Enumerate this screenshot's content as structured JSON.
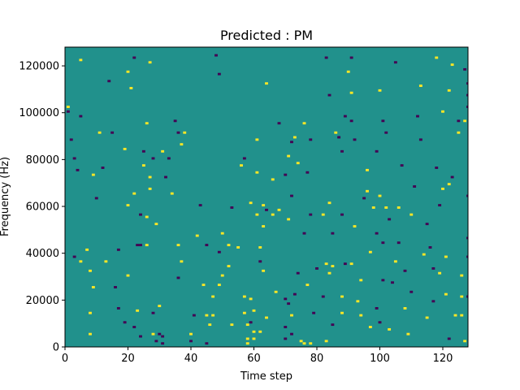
{
  "chart_data": {
    "type": "heatmap",
    "title": "Predicted : PM",
    "xlabel": "Time step",
    "ylabel": "Frequency (Hz)",
    "xlim": [
      0,
      128
    ],
    "ylim": [
      0,
      128000
    ],
    "x_ticks": [
      "0",
      "20",
      "40",
      "60",
      "80",
      "100",
      "120"
    ],
    "y_ticks": [
      "0",
      "20000",
      "40000",
      "60000",
      "80000",
      "100000",
      "120000"
    ],
    "grid": false,
    "legend": "none",
    "bin_count": 128,
    "bin_hz": 1000,
    "colors": {
      "background": "#21918c",
      "high": "#fde725",
      "low": "#440154"
    },
    "cells": [
      {
        "t": 1,
        "f": 100,
        "v": "low"
      },
      {
        "t": 1,
        "f": 102,
        "v": "high"
      },
      {
        "t": 2,
        "f": 88,
        "v": "low"
      },
      {
        "t": 3,
        "f": 80,
        "v": "low"
      },
      {
        "t": 3,
        "f": 38,
        "v": "low"
      },
      {
        "t": 4,
        "f": 75,
        "v": "low"
      },
      {
        "t": 5,
        "f": 98,
        "v": "low"
      },
      {
        "t": 5,
        "f": 122,
        "v": "high"
      },
      {
        "t": 5,
        "f": 36,
        "v": "high"
      },
      {
        "t": 7,
        "f": 41,
        "v": "high"
      },
      {
        "t": 8,
        "f": 32,
        "v": "high"
      },
      {
        "t": 8,
        "f": 14,
        "v": "high"
      },
      {
        "t": 8,
        "f": 5,
        "v": "high"
      },
      {
        "t": 9,
        "f": 73,
        "v": "high"
      },
      {
        "t": 9,
        "f": 25,
        "v": "high"
      },
      {
        "t": 10,
        "f": 63,
        "v": "low"
      },
      {
        "t": 11,
        "f": 91,
        "v": "high"
      },
      {
        "t": 12,
        "f": 76,
        "v": "low"
      },
      {
        "t": 13,
        "f": 36,
        "v": "high"
      },
      {
        "t": 14,
        "f": 113,
        "v": "low"
      },
      {
        "t": 15,
        "f": 91,
        "v": "low"
      },
      {
        "t": 16,
        "f": 25,
        "v": "low"
      },
      {
        "t": 17,
        "f": 16,
        "v": "low"
      },
      {
        "t": 17,
        "f": 41,
        "v": "low"
      },
      {
        "t": 19,
        "f": 10,
        "v": "low"
      },
      {
        "t": 19,
        "f": 84,
        "v": "high"
      },
      {
        "t": 20,
        "f": 117,
        "v": "high"
      },
      {
        "t": 20,
        "f": 30,
        "v": "high"
      },
      {
        "t": 20,
        "f": 60,
        "v": "high"
      },
      {
        "t": 21,
        "f": 110,
        "v": "high"
      },
      {
        "t": 22,
        "f": 123,
        "v": "low"
      },
      {
        "t": 22,
        "f": 65,
        "v": "high"
      },
      {
        "t": 22,
        "f": 8,
        "v": "low"
      },
      {
        "t": 23,
        "f": 43,
        "v": "low"
      },
      {
        "t": 23,
        "f": 15,
        "v": "high"
      },
      {
        "t": 24,
        "f": 56,
        "v": "low"
      },
      {
        "t": 24,
        "f": 43,
        "v": "low"
      },
      {
        "t": 24,
        "f": 4,
        "v": "low"
      },
      {
        "t": 25,
        "f": 83,
        "v": "low"
      },
      {
        "t": 25,
        "f": 77,
        "v": "high"
      },
      {
        "t": 26,
        "f": 95,
        "v": "high"
      },
      {
        "t": 26,
        "f": 55,
        "v": "high"
      },
      {
        "t": 26,
        "f": 43,
        "v": "high"
      },
      {
        "t": 27,
        "f": 121,
        "v": "high"
      },
      {
        "t": 27,
        "f": 72,
        "v": "high"
      },
      {
        "t": 27,
        "f": 67,
        "v": "high"
      },
      {
        "t": 28,
        "f": 80,
        "v": "low"
      },
      {
        "t": 28,
        "f": 14,
        "v": "low"
      },
      {
        "t": 28,
        "f": 5,
        "v": "high"
      },
      {
        "t": 29,
        "f": 52,
        "v": "high"
      },
      {
        "t": 29,
        "f": 2,
        "v": "low"
      },
      {
        "t": 30,
        "f": 5,
        "v": "low"
      },
      {
        "t": 30,
        "f": 17,
        "v": "high"
      },
      {
        "t": 31,
        "f": 83,
        "v": "high"
      },
      {
        "t": 31,
        "f": 4,
        "v": "low"
      },
      {
        "t": 31,
        "f": 1,
        "v": "low"
      },
      {
        "t": 32,
        "f": 72,
        "v": "low"
      },
      {
        "t": 33,
        "f": 80,
        "v": "low"
      },
      {
        "t": 34,
        "f": 65,
        "v": "high"
      },
      {
        "t": 35,
        "f": 96,
        "v": "low"
      },
      {
        "t": 36,
        "f": 91,
        "v": "low"
      },
      {
        "t": 36,
        "f": 43,
        "v": "high"
      },
      {
        "t": 36,
        "f": 29,
        "v": "low"
      },
      {
        "t": 37,
        "f": 86,
        "v": "high"
      },
      {
        "t": 37,
        "f": 36,
        "v": "high"
      },
      {
        "t": 38,
        "f": 91,
        "v": "high"
      },
      {
        "t": 40,
        "f": 5,
        "v": "high"
      },
      {
        "t": 40,
        "f": 2,
        "v": "low"
      },
      {
        "t": 41,
        "f": 13,
        "v": "low"
      },
      {
        "t": 42,
        "f": 47,
        "v": "high"
      },
      {
        "t": 43,
        "f": 60,
        "v": "low"
      },
      {
        "t": 44,
        "f": 26,
        "v": "high"
      },
      {
        "t": 45,
        "f": 43,
        "v": "low"
      },
      {
        "t": 45,
        "f": 13,
        "v": "high"
      },
      {
        "t": 45,
        "f": 1,
        "v": "low"
      },
      {
        "t": 46,
        "f": 9,
        "v": "high"
      },
      {
        "t": 47,
        "f": 13,
        "v": "high"
      },
      {
        "t": 47,
        "f": 21,
        "v": "high"
      },
      {
        "t": 48,
        "f": 124,
        "v": "low"
      },
      {
        "t": 49,
        "f": 116,
        "v": "low"
      },
      {
        "t": 49,
        "f": 40,
        "v": "low"
      },
      {
        "t": 49,
        "f": 26,
        "v": "high"
      },
      {
        "t": 50,
        "f": 48,
        "v": "high"
      },
      {
        "t": 50,
        "f": 30,
        "v": "high"
      },
      {
        "t": 52,
        "f": 43,
        "v": "high"
      },
      {
        "t": 52,
        "f": 34,
        "v": "high"
      },
      {
        "t": 53,
        "f": 9,
        "v": "high"
      },
      {
        "t": 53,
        "f": 59,
        "v": "low"
      },
      {
        "t": 55,
        "f": 42,
        "v": "high"
      },
      {
        "t": 56,
        "f": 77,
        "v": "high"
      },
      {
        "t": 57,
        "f": 80,
        "v": "low"
      },
      {
        "t": 57,
        "f": 21,
        "v": "high"
      },
      {
        "t": 57,
        "f": 14,
        "v": "high"
      },
      {
        "t": 58,
        "f": 9,
        "v": "high"
      },
      {
        "t": 58,
        "f": 3,
        "v": "high"
      },
      {
        "t": 58,
        "f": 1,
        "v": "high"
      },
      {
        "t": 59,
        "f": 61,
        "v": "high"
      },
      {
        "t": 59,
        "f": 20,
        "v": "high"
      },
      {
        "t": 59,
        "f": 10,
        "v": "low"
      },
      {
        "t": 60,
        "f": 15,
        "v": "high"
      },
      {
        "t": 60,
        "f": 6,
        "v": "high"
      },
      {
        "t": 60,
        "f": 3,
        "v": "high"
      },
      {
        "t": 61,
        "f": 88,
        "v": "high"
      },
      {
        "t": 61,
        "f": 74,
        "v": "high"
      },
      {
        "t": 61,
        "f": 56,
        "v": "high"
      },
      {
        "t": 62,
        "f": 42,
        "v": "high"
      },
      {
        "t": 62,
        "f": 36,
        "v": "low"
      },
      {
        "t": 62,
        "f": 6,
        "v": "high"
      },
      {
        "t": 63,
        "f": 60,
        "v": "high"
      },
      {
        "t": 63,
        "f": 51,
        "v": "high"
      },
      {
        "t": 63,
        "f": 32,
        "v": "high"
      },
      {
        "t": 64,
        "f": 112,
        "v": "high"
      },
      {
        "t": 64,
        "f": 58,
        "v": "low"
      },
      {
        "t": 64,
        "f": 12,
        "v": "high"
      },
      {
        "t": 66,
        "f": 71,
        "v": "high"
      },
      {
        "t": 66,
        "f": 56,
        "v": "high"
      },
      {
        "t": 67,
        "f": 23,
        "v": "high"
      },
      {
        "t": 68,
        "f": 95,
        "v": "low"
      },
      {
        "t": 68,
        "f": 58,
        "v": "high"
      },
      {
        "t": 70,
        "f": 73,
        "v": "low"
      },
      {
        "t": 70,
        "f": 20,
        "v": "low"
      },
      {
        "t": 70,
        "f": 8,
        "v": "low"
      },
      {
        "t": 70,
        "f": 3,
        "v": "low"
      },
      {
        "t": 71,
        "f": 81,
        "v": "high"
      },
      {
        "t": 71,
        "f": 54,
        "v": "high"
      },
      {
        "t": 71,
        "f": 18,
        "v": "low"
      },
      {
        "t": 72,
        "f": 87,
        "v": "low"
      },
      {
        "t": 72,
        "f": 64,
        "v": "low"
      },
      {
        "t": 72,
        "f": 13,
        "v": "high"
      },
      {
        "t": 72,
        "f": 5,
        "v": "low"
      },
      {
        "t": 73,
        "f": 89,
        "v": "high"
      },
      {
        "t": 73,
        "f": 22,
        "v": "low"
      },
      {
        "t": 74,
        "f": 78,
        "v": "high"
      },
      {
        "t": 74,
        "f": 31,
        "v": "low"
      },
      {
        "t": 75,
        "f": 2,
        "v": "high"
      },
      {
        "t": 76,
        "f": 95,
        "v": "high"
      },
      {
        "t": 76,
        "f": 48,
        "v": "low"
      },
      {
        "t": 76,
        "f": 1,
        "v": "high"
      },
      {
        "t": 77,
        "f": 74,
        "v": "low"
      },
      {
        "t": 77,
        "f": 26,
        "v": "high"
      },
      {
        "t": 78,
        "f": 88,
        "v": "low"
      },
      {
        "t": 78,
        "f": 56,
        "v": "low"
      },
      {
        "t": 78,
        "f": 1,
        "v": "high"
      },
      {
        "t": 79,
        "f": 14,
        "v": "low"
      },
      {
        "t": 80,
        "f": 33,
        "v": "low"
      },
      {
        "t": 82,
        "f": 56,
        "v": "high"
      },
      {
        "t": 82,
        "f": 21,
        "v": "low"
      },
      {
        "t": 83,
        "f": 123,
        "v": "low"
      },
      {
        "t": 83,
        "f": 35,
        "v": "high"
      },
      {
        "t": 83,
        "f": 2,
        "v": "high"
      },
      {
        "t": 84,
        "f": 107,
        "v": "low"
      },
      {
        "t": 84,
        "f": 61,
        "v": "high"
      },
      {
        "t": 84,
        "f": 31,
        "v": "high"
      },
      {
        "t": 85,
        "f": 48,
        "v": "low"
      },
      {
        "t": 85,
        "f": 34,
        "v": "high"
      },
      {
        "t": 85,
        "f": 9,
        "v": "low"
      },
      {
        "t": 86,
        "f": 91,
        "v": "high"
      },
      {
        "t": 87,
        "f": 89,
        "v": "low"
      },
      {
        "t": 88,
        "f": 83,
        "v": "low"
      },
      {
        "t": 88,
        "f": 56,
        "v": "low"
      },
      {
        "t": 88,
        "f": 21,
        "v": "high"
      },
      {
        "t": 88,
        "f": 14,
        "v": "high"
      },
      {
        "t": 89,
        "f": 98,
        "v": "low"
      },
      {
        "t": 89,
        "f": 35,
        "v": "low"
      },
      {
        "t": 90,
        "f": 117,
        "v": "high"
      },
      {
        "t": 91,
        "f": 123,
        "v": "low"
      },
      {
        "t": 91,
        "f": 108,
        "v": "high"
      },
      {
        "t": 91,
        "f": 96,
        "v": "low"
      },
      {
        "t": 91,
        "f": 35,
        "v": "high"
      },
      {
        "t": 92,
        "f": 88,
        "v": "low"
      },
      {
        "t": 92,
        "f": 51,
        "v": "high"
      },
      {
        "t": 93,
        "f": 19,
        "v": "high"
      },
      {
        "t": 94,
        "f": 28,
        "v": "high"
      },
      {
        "t": 94,
        "f": 13,
        "v": "high"
      },
      {
        "t": 95,
        "f": 63,
        "v": "low"
      },
      {
        "t": 96,
        "f": 75,
        "v": "high"
      },
      {
        "t": 96,
        "f": 66,
        "v": "high"
      },
      {
        "t": 97,
        "f": 40,
        "v": "high"
      },
      {
        "t": 97,
        "f": 8,
        "v": "high"
      },
      {
        "t": 98,
        "f": 59,
        "v": "high"
      },
      {
        "t": 99,
        "f": 83,
        "v": "low"
      },
      {
        "t": 99,
        "f": 48,
        "v": "low"
      },
      {
        "t": 99,
        "f": 16,
        "v": "low"
      },
      {
        "t": 100,
        "f": 109,
        "v": "high"
      },
      {
        "t": 100,
        "f": 64,
        "v": "high"
      },
      {
        "t": 100,
        "f": 10,
        "v": "low"
      },
      {
        "t": 101,
        "f": 96,
        "v": "low"
      },
      {
        "t": 101,
        "f": 44,
        "v": "low"
      },
      {
        "t": 101,
        "f": 28,
        "v": "low"
      },
      {
        "t": 102,
        "f": 91,
        "v": "low"
      },
      {
        "t": 102,
        "f": 59,
        "v": "high"
      },
      {
        "t": 103,
        "f": 54,
        "v": "low"
      },
      {
        "t": 103,
        "f": 7,
        "v": "high"
      },
      {
        "t": 104,
        "f": 27,
        "v": "low"
      },
      {
        "t": 105,
        "f": 121,
        "v": "low"
      },
      {
        "t": 105,
        "f": 36,
        "v": "high"
      },
      {
        "t": 106,
        "f": 59,
        "v": "high"
      },
      {
        "t": 106,
        "f": 44,
        "v": "low"
      },
      {
        "t": 107,
        "f": 77,
        "v": "low"
      },
      {
        "t": 108,
        "f": 32,
        "v": "low"
      },
      {
        "t": 108,
        "f": 16,
        "v": "high"
      },
      {
        "t": 109,
        "f": 5,
        "v": "high"
      },
      {
        "t": 110,
        "f": 23,
        "v": "low"
      },
      {
        "t": 110,
        "f": 56,
        "v": "high"
      },
      {
        "t": 111,
        "f": 68,
        "v": "low"
      },
      {
        "t": 112,
        "f": 98,
        "v": "low"
      },
      {
        "t": 113,
        "f": 111,
        "v": "high"
      },
      {
        "t": 113,
        "f": 88,
        "v": "low"
      },
      {
        "t": 114,
        "f": 39,
        "v": "high"
      },
      {
        "t": 115,
        "f": 52,
        "v": "low"
      },
      {
        "t": 115,
        "f": 12,
        "v": "high"
      },
      {
        "t": 116,
        "f": 42,
        "v": "low"
      },
      {
        "t": 117,
        "f": 33,
        "v": "low"
      },
      {
        "t": 117,
        "f": 19,
        "v": "low"
      },
      {
        "t": 118,
        "f": 123,
        "v": "high"
      },
      {
        "t": 118,
        "f": 76,
        "v": "low"
      },
      {
        "t": 119,
        "f": 60,
        "v": "low"
      },
      {
        "t": 119,
        "f": 31,
        "v": "high"
      },
      {
        "t": 120,
        "f": 100,
        "v": "high"
      },
      {
        "t": 120,
        "f": 67,
        "v": "high"
      },
      {
        "t": 121,
        "f": 22,
        "v": "high"
      },
      {
        "t": 121,
        "f": 38,
        "v": "high"
      },
      {
        "t": 122,
        "f": 109,
        "v": "high"
      },
      {
        "t": 122,
        "f": 69,
        "v": "high"
      },
      {
        "t": 122,
        "f": 3,
        "v": "low"
      },
      {
        "t": 123,
        "f": 72,
        "v": "low"
      },
      {
        "t": 123,
        "f": 120,
        "v": "high"
      },
      {
        "t": 124,
        "f": 13,
        "v": "high"
      },
      {
        "t": 125,
        "f": 96,
        "v": "low"
      },
      {
        "t": 125,
        "f": 91,
        "v": "high"
      },
      {
        "t": 126,
        "f": 30,
        "v": "high"
      },
      {
        "t": 126,
        "f": 21,
        "v": "high"
      },
      {
        "t": 126,
        "f": 13,
        "v": "high"
      },
      {
        "t": 127,
        "f": 96,
        "v": "high"
      },
      {
        "t": 127,
        "f": 118,
        "v": "low"
      },
      {
        "t": 127,
        "f": 2,
        "v": "high"
      },
      {
        "t": 128,
        "f": 112,
        "v": "low"
      },
      {
        "t": 128,
        "f": 107,
        "v": "low"
      },
      {
        "t": 128,
        "f": 102,
        "v": "low"
      },
      {
        "t": 128,
        "f": 64,
        "v": "low"
      },
      {
        "t": 128,
        "f": 46,
        "v": "low"
      },
      {
        "t": 128,
        "f": 38,
        "v": "low"
      },
      {
        "t": 128,
        "f": 21,
        "v": "low"
      }
    ]
  }
}
